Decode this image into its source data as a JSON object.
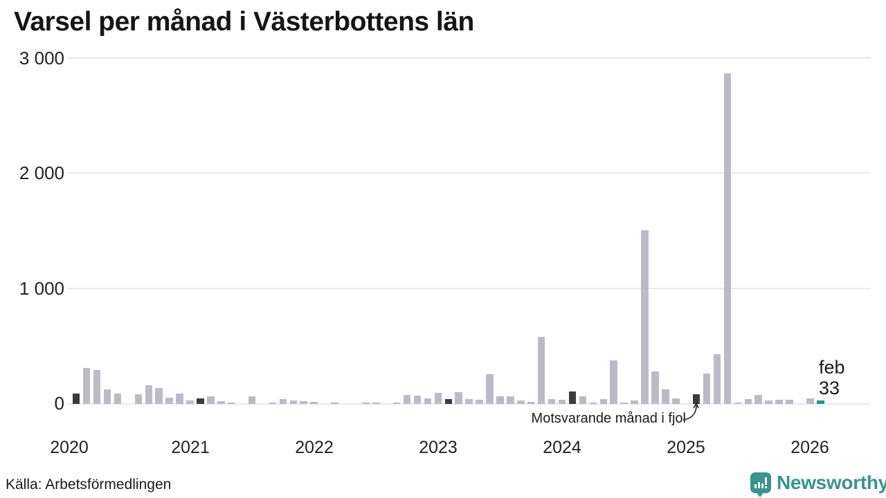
{
  "title": "Varsel per månad i Västerbottens län",
  "source_text": "Källa: Arbetsförmedlingen",
  "brand": {
    "name": "Newsworthy",
    "color": "#3a938c"
  },
  "colors": {
    "bar_normal": "#bdbac8",
    "bar_compare": "#3b3b3b",
    "bar_current": "#189b84",
    "gridline": "#e9e8ed",
    "text": "#1a1a1a"
  },
  "chart_data": {
    "type": "bar",
    "title": "Varsel per månad i Västerbottens län",
    "ylabel": "",
    "xlabel": "",
    "ylim": [
      0,
      3000
    ],
    "grid": "horizontal",
    "y_ticks": [
      0,
      1000,
      2000,
      3000
    ],
    "y_tick_labels": [
      "0",
      "1 000",
      "2 000",
      "3 000"
    ],
    "x_tick_labels": [
      "2020",
      "2021",
      "2022",
      "2023",
      "2024",
      "2025",
      "2026"
    ],
    "annotation": "Motsvarande månad i fjol",
    "annotation_target_month": "2025-02",
    "highlight_month_label": "feb",
    "highlight_value_label": "33",
    "legend": "none",
    "kinds_legend": {
      "n": "normal month",
      "c": "same month previous years (dark)",
      "h": "current month (teal)"
    },
    "months": [
      [
        "2020-01",
        0,
        "n"
      ],
      [
        "2020-02",
        90,
        "c"
      ],
      [
        "2020-03",
        310,
        "n"
      ],
      [
        "2020-04",
        292,
        "n"
      ],
      [
        "2020-05",
        124,
        "n"
      ],
      [
        "2020-06",
        90,
        "n"
      ],
      [
        "2020-07",
        0,
        "n"
      ],
      [
        "2020-08",
        84,
        "n"
      ],
      [
        "2020-09",
        165,
        "n"
      ],
      [
        "2020-10",
        136,
        "n"
      ],
      [
        "2020-11",
        52,
        "n"
      ],
      [
        "2020-12",
        88,
        "n"
      ],
      [
        "2021-01",
        30,
        "n"
      ],
      [
        "2021-02",
        48,
        "c"
      ],
      [
        "2021-03",
        64,
        "n"
      ],
      [
        "2021-04",
        24,
        "n"
      ],
      [
        "2021-05",
        10,
        "n"
      ],
      [
        "2021-06",
        0,
        "n"
      ],
      [
        "2021-07",
        68,
        "n"
      ],
      [
        "2021-08",
        0,
        "n"
      ],
      [
        "2021-09",
        12,
        "n"
      ],
      [
        "2021-10",
        40,
        "n"
      ],
      [
        "2021-11",
        32,
        "n"
      ],
      [
        "2021-12",
        22,
        "n"
      ],
      [
        "2022-01",
        20,
        "n"
      ],
      [
        "2022-02",
        0,
        "c"
      ],
      [
        "2022-03",
        12,
        "n"
      ],
      [
        "2022-04",
        0,
        "n"
      ],
      [
        "2022-05",
        0,
        "n"
      ],
      [
        "2022-06",
        12,
        "n"
      ],
      [
        "2022-07",
        10,
        "n"
      ],
      [
        "2022-08",
        0,
        "n"
      ],
      [
        "2022-09",
        10,
        "n"
      ],
      [
        "2022-10",
        76,
        "n"
      ],
      [
        "2022-11",
        70,
        "n"
      ],
      [
        "2022-12",
        50,
        "n"
      ],
      [
        "2023-01",
        94,
        "n"
      ],
      [
        "2023-02",
        42,
        "c"
      ],
      [
        "2023-03",
        100,
        "n"
      ],
      [
        "2023-04",
        40,
        "n"
      ],
      [
        "2023-05",
        38,
        "n"
      ],
      [
        "2023-06",
        258,
        "n"
      ],
      [
        "2023-07",
        64,
        "n"
      ],
      [
        "2023-08",
        64,
        "n"
      ],
      [
        "2023-09",
        30,
        "n"
      ],
      [
        "2023-10",
        20,
        "n"
      ],
      [
        "2023-11",
        585,
        "n"
      ],
      [
        "2023-12",
        44,
        "n"
      ],
      [
        "2024-01",
        34,
        "n"
      ],
      [
        "2024-02",
        108,
        "c"
      ],
      [
        "2024-03",
        68,
        "n"
      ],
      [
        "2024-04",
        10,
        "n"
      ],
      [
        "2024-05",
        44,
        "n"
      ],
      [
        "2024-06",
        380,
        "n"
      ],
      [
        "2024-07",
        15,
        "n"
      ],
      [
        "2024-08",
        30,
        "n"
      ],
      [
        "2024-09",
        1510,
        "n"
      ],
      [
        "2024-10",
        284,
        "n"
      ],
      [
        "2024-11",
        124,
        "n"
      ],
      [
        "2024-12",
        50,
        "n"
      ],
      [
        "2025-01",
        0,
        "n"
      ],
      [
        "2025-02",
        84,
        "c"
      ],
      [
        "2025-03",
        264,
        "n"
      ],
      [
        "2025-04",
        434,
        "n"
      ],
      [
        "2025-05",
        2870,
        "n"
      ],
      [
        "2025-06",
        14,
        "n"
      ],
      [
        "2025-07",
        44,
        "n"
      ],
      [
        "2025-08",
        78,
        "n"
      ],
      [
        "2025-09",
        30,
        "n"
      ],
      [
        "2025-10",
        36,
        "n"
      ],
      [
        "2025-11",
        36,
        "n"
      ],
      [
        "2025-12",
        0,
        "n"
      ],
      [
        "2026-01",
        50,
        "n"
      ],
      [
        "2026-02",
        33,
        "h"
      ]
    ]
  }
}
